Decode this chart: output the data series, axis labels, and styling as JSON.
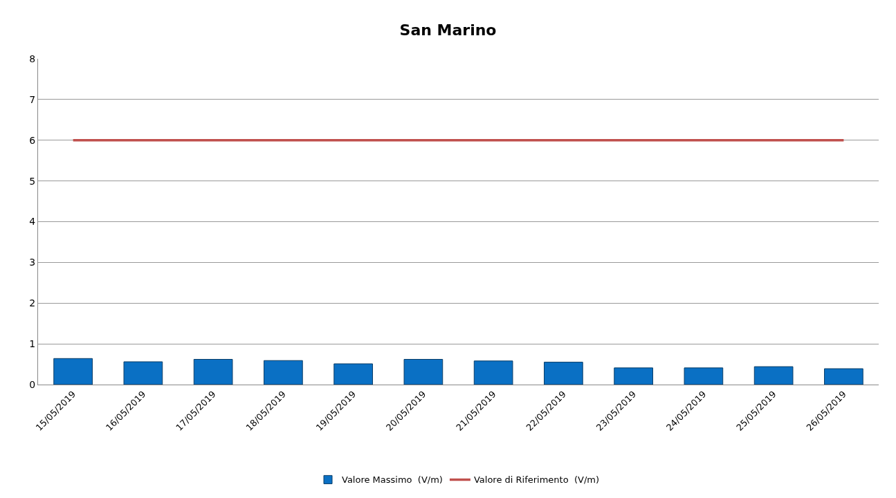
{
  "chart_data": {
    "type": "bar",
    "title": "San Marino",
    "categories": [
      "15/05/2019",
      "16/05/2019",
      "17/05/2019",
      "18/05/2019",
      "19/05/2019",
      "20/05/2019",
      "21/05/2019",
      "22/05/2019",
      "23/05/2019",
      "24/05/2019",
      "25/05/2019",
      "26/05/2019"
    ],
    "series": [
      {
        "name": "Valore Massimo  (V/m)",
        "color": "#0a70c4",
        "values": [
          0.64,
          0.56,
          0.62,
          0.59,
          0.51,
          0.62,
          0.58,
          0.55,
          0.41,
          0.41,
          0.44,
          0.39
        ]
      },
      {
        "name": "Valore di Riferimento  (V/m)",
        "type": "line",
        "color": "#c0504d",
        "values": [
          6,
          6,
          6,
          6,
          6,
          6,
          6,
          6,
          6,
          6,
          6,
          6
        ]
      }
    ],
    "ylim": [
      0,
      8
    ],
    "yticks": [
      0,
      1,
      2,
      3,
      4,
      5,
      6,
      7,
      8
    ],
    "grid": "y",
    "legend": "bottom"
  }
}
